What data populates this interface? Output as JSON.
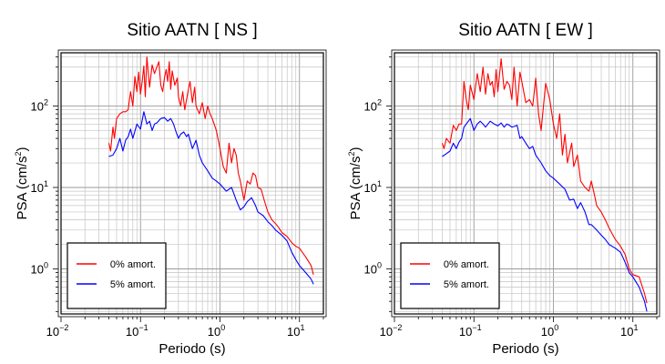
{
  "chart_data": [
    {
      "type": "line",
      "title": "Sitio AATN [ NS ]",
      "xlabel": "Periodo (s)",
      "ylabel": "PSA (cm/s²)",
      "ylabel_base": "PSA (cm/s",
      "ylabel_sup": "2",
      "ylabel_close": ")",
      "x_scale": "log",
      "y_scale": "log",
      "xlim": [
        0.01,
        20
      ],
      "ylim": [
        0.28,
        450
      ],
      "x_ticks": [
        {
          "value": 0.01,
          "base": "10",
          "exp": "−2"
        },
        {
          "value": 0.1,
          "base": "10",
          "exp": "−1"
        },
        {
          "value": 1,
          "base": "10",
          "exp": "0"
        },
        {
          "value": 10,
          "base": "10",
          "exp": "1"
        }
      ],
      "y_ticks": [
        {
          "value": 1,
          "base": "10",
          "exp": "0"
        },
        {
          "value": 10,
          "base": "10",
          "exp": "1"
        },
        {
          "value": 100,
          "base": "10",
          "exp": "2"
        }
      ],
      "grid": true,
      "legend_position": "bottom-left",
      "series": [
        {
          "name": "0% amort.",
          "color": "#ff0000",
          "x": [
            0.04,
            0.042,
            0.045,
            0.047,
            0.05,
            0.055,
            0.06,
            0.065,
            0.07,
            0.075,
            0.08,
            0.085,
            0.09,
            0.095,
            0.1,
            0.105,
            0.11,
            0.115,
            0.12,
            0.13,
            0.14,
            0.15,
            0.16,
            0.17,
            0.18,
            0.19,
            0.2,
            0.21,
            0.22,
            0.23,
            0.24,
            0.25,
            0.27,
            0.29,
            0.3,
            0.32,
            0.34,
            0.36,
            0.38,
            0.4,
            0.42,
            0.45,
            0.48,
            0.5,
            0.55,
            0.6,
            0.65,
            0.7,
            0.75,
            0.8,
            0.9,
            1.0,
            1.1,
            1.2,
            1.3,
            1.4,
            1.5,
            1.6,
            1.7,
            1.8,
            2.0,
            2.2,
            2.4,
            2.6,
            2.8,
            3.0,
            3.3,
            3.6,
            4.0,
            4.5,
            5.0,
            5.5,
            6.0,
            7.0,
            8.0,
            9.0,
            10,
            12,
            14,
            15
          ],
          "y": [
            35,
            28,
            55,
            40,
            70,
            80,
            85,
            85,
            90,
            150,
            100,
            230,
            150,
            260,
            140,
            200,
            310,
            130,
            400,
            170,
            320,
            250,
            300,
            350,
            180,
            150,
            220,
            280,
            200,
            350,
            160,
            270,
            180,
            220,
            130,
            100,
            150,
            90,
            120,
            160,
            200,
            110,
            170,
            100,
            80,
            110,
            70,
            100,
            80,
            70,
            50,
            30,
            18,
            15,
            35,
            20,
            30,
            25,
            15,
            12,
            7,
            12,
            11,
            15,
            14,
            10,
            9.5,
            7,
            5,
            4,
            3.6,
            3.2,
            2.8,
            2.5,
            2.1,
            1.9,
            1.8,
            1.4,
            1.1,
            0.85
          ]
        },
        {
          "name": "5% amort.",
          "color": "#0000ff",
          "x": [
            0.04,
            0.045,
            0.05,
            0.055,
            0.06,
            0.065,
            0.07,
            0.075,
            0.08,
            0.09,
            0.1,
            0.11,
            0.12,
            0.13,
            0.14,
            0.15,
            0.16,
            0.18,
            0.2,
            0.22,
            0.24,
            0.26,
            0.28,
            0.3,
            0.32,
            0.35,
            0.38,
            0.4,
            0.45,
            0.5,
            0.55,
            0.6,
            0.7,
            0.8,
            0.9,
            1.0,
            1.2,
            1.4,
            1.6,
            1.8,
            2.0,
            2.2,
            2.5,
            2.8,
            3.0,
            3.5,
            4.0,
            4.5,
            5.0,
            6.0,
            7.0,
            8.0,
            9.0,
            10,
            12,
            14,
            15
          ],
          "y": [
            24,
            25,
            30,
            40,
            28,
            38,
            42,
            52,
            40,
            60,
            52,
            85,
            60,
            65,
            50,
            60,
            62,
            70,
            72,
            65,
            70,
            60,
            48,
            40,
            45,
            48,
            42,
            45,
            30,
            38,
            25,
            20,
            16,
            13,
            12,
            11,
            9,
            10,
            7,
            5.3,
            5.8,
            6.7,
            7.5,
            6,
            5,
            4.5,
            3.8,
            3.4,
            3.0,
            2.6,
            2.2,
            1.6,
            1.3,
            1.1,
            0.9,
            0.75,
            0.65
          ]
        }
      ]
    },
    {
      "type": "line",
      "title": "Sitio AATN [ EW ]",
      "xlabel": "Periodo (s)",
      "ylabel": "PSA (cm/s²)",
      "ylabel_base": "PSA (cm/s",
      "ylabel_sup": "2",
      "ylabel_close": ")",
      "x_scale": "log",
      "y_scale": "log",
      "xlim": [
        0.01,
        20
      ],
      "ylim": [
        0.28,
        450
      ],
      "x_ticks": [
        {
          "value": 0.01,
          "base": "10",
          "exp": "−2"
        },
        {
          "value": 0.1,
          "base": "10",
          "exp": "−1"
        },
        {
          "value": 1,
          "base": "10",
          "exp": "0"
        },
        {
          "value": 10,
          "base": "10",
          "exp": "1"
        }
      ],
      "y_ticks": [
        {
          "value": 1,
          "base": "10",
          "exp": "0"
        },
        {
          "value": 10,
          "base": "10",
          "exp": "1"
        },
        {
          "value": 100,
          "base": "10",
          "exp": "2"
        }
      ],
      "grid": true,
      "legend_position": "bottom-left",
      "series": [
        {
          "name": "0% amort.",
          "color": "#ff0000",
          "x": [
            0.04,
            0.042,
            0.045,
            0.05,
            0.055,
            0.06,
            0.065,
            0.07,
            0.075,
            0.08,
            0.085,
            0.09,
            0.1,
            0.11,
            0.12,
            0.13,
            0.14,
            0.15,
            0.16,
            0.17,
            0.18,
            0.19,
            0.2,
            0.22,
            0.24,
            0.26,
            0.28,
            0.3,
            0.32,
            0.35,
            0.38,
            0.4,
            0.45,
            0.5,
            0.55,
            0.6,
            0.65,
            0.7,
            0.8,
            0.9,
            1.0,
            1.1,
            1.2,
            1.3,
            1.4,
            1.5,
            1.7,
            1.8,
            2.0,
            2.2,
            2.5,
            2.8,
            3.0,
            3.3,
            3.5,
            4.0,
            4.5,
            5.0,
            6.0,
            7.0,
            8.0,
            9.0,
            10,
            12,
            14,
            15
          ],
          "y": [
            35,
            30,
            40,
            35,
            58,
            50,
            60,
            60,
            200,
            120,
            90,
            180,
            120,
            250,
            150,
            300,
            140,
            250,
            180,
            200,
            130,
            280,
            150,
            380,
            160,
            200,
            180,
            120,
            300,
            100,
            260,
            200,
            110,
            120,
            100,
            220,
            80,
            50,
            190,
            120,
            60,
            40,
            80,
            25,
            45,
            20,
            35,
            18,
            25,
            12,
            10,
            9,
            12,
            8,
            6,
            5,
            4,
            3.2,
            2.3,
            1.9,
            1.5,
            1.0,
            0.85,
            0.8,
            0.5,
            0.38
          ]
        },
        {
          "name": "5% amort.",
          "color": "#0000ff",
          "x": [
            0.04,
            0.045,
            0.05,
            0.055,
            0.06,
            0.065,
            0.07,
            0.075,
            0.08,
            0.09,
            0.1,
            0.11,
            0.12,
            0.13,
            0.14,
            0.15,
            0.16,
            0.18,
            0.2,
            0.22,
            0.24,
            0.26,
            0.28,
            0.3,
            0.32,
            0.35,
            0.38,
            0.4,
            0.45,
            0.5,
            0.55,
            0.6,
            0.7,
            0.8,
            0.9,
            1.0,
            1.2,
            1.4,
            1.6,
            1.8,
            2.0,
            2.2,
            2.5,
            2.8,
            3.0,
            3.5,
            4.0,
            4.5,
            5.0,
            6.0,
            7.0,
            8.0,
            9.0,
            10,
            12,
            14,
            15
          ],
          "y": [
            24,
            26,
            28,
            35,
            30,
            36,
            40,
            55,
            60,
            70,
            50,
            60,
            65,
            60,
            55,
            60,
            65,
            60,
            57,
            62,
            55,
            60,
            58,
            55,
            56,
            58,
            40,
            42,
            35,
            30,
            32,
            25,
            20,
            16,
            14,
            13,
            11,
            9.5,
            7,
            7.2,
            5.5,
            6.5,
            5,
            3.5,
            3.5,
            3,
            2.6,
            2.3,
            2.0,
            1.8,
            1.6,
            1.2,
            0.9,
            0.8,
            0.6,
            0.4,
            0.3
          ]
        }
      ]
    }
  ]
}
